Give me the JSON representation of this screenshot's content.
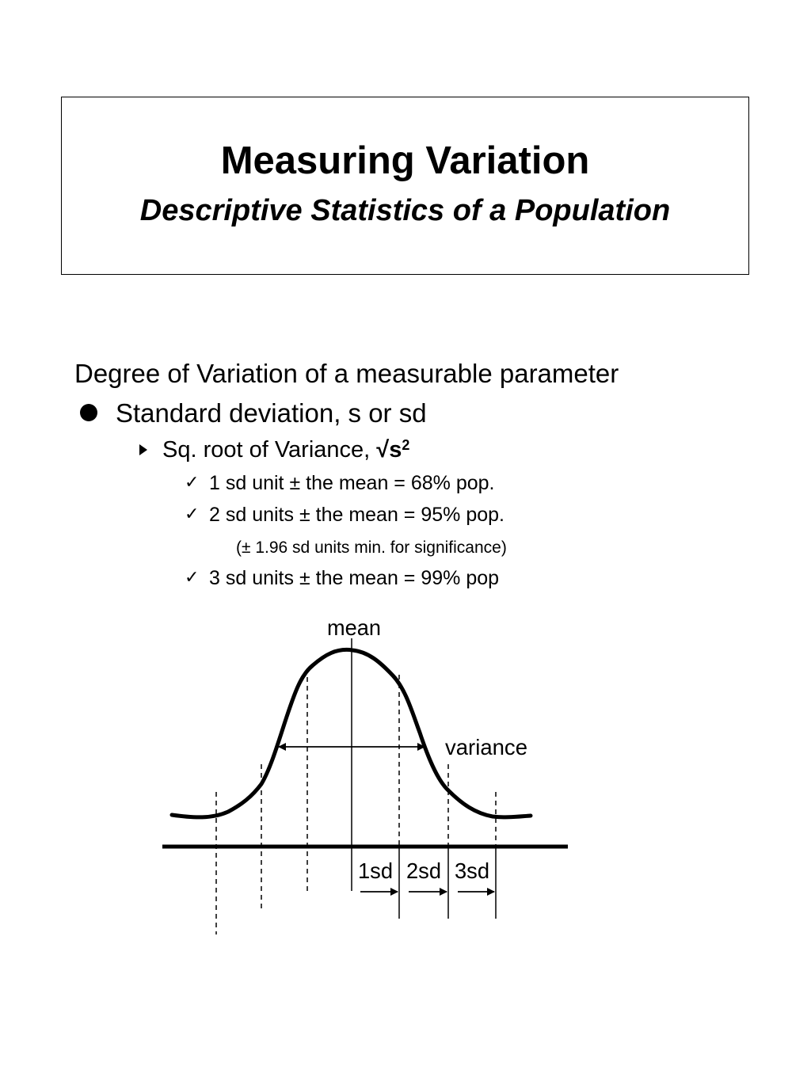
{
  "header": {
    "title": "Measuring Variation",
    "subtitle": "Descriptive Statistics of a Population"
  },
  "content": {
    "heading": "Degree of Variation of a measurable parameter",
    "bullet1": "Standard deviation, s or sd",
    "bullet2_prefix": "Sq. root of Variance, ",
    "bullet2_root": "√s",
    "bullet2_sup": "2",
    "checks": [
      "1 sd unit ± the mean   = 68% pop.",
      "2 sd units ± the mean = 95% pop.",
      "3 sd units ± the mean = 99% pop"
    ],
    "note": "(± 1.96 sd units min. for significance)",
    "check_glyph": "✓"
  },
  "diagram": {
    "mean_label": "mean",
    "variance_label": "variance",
    "sd_labels": [
      "1sd",
      "2sd",
      "3sd"
    ]
  }
}
